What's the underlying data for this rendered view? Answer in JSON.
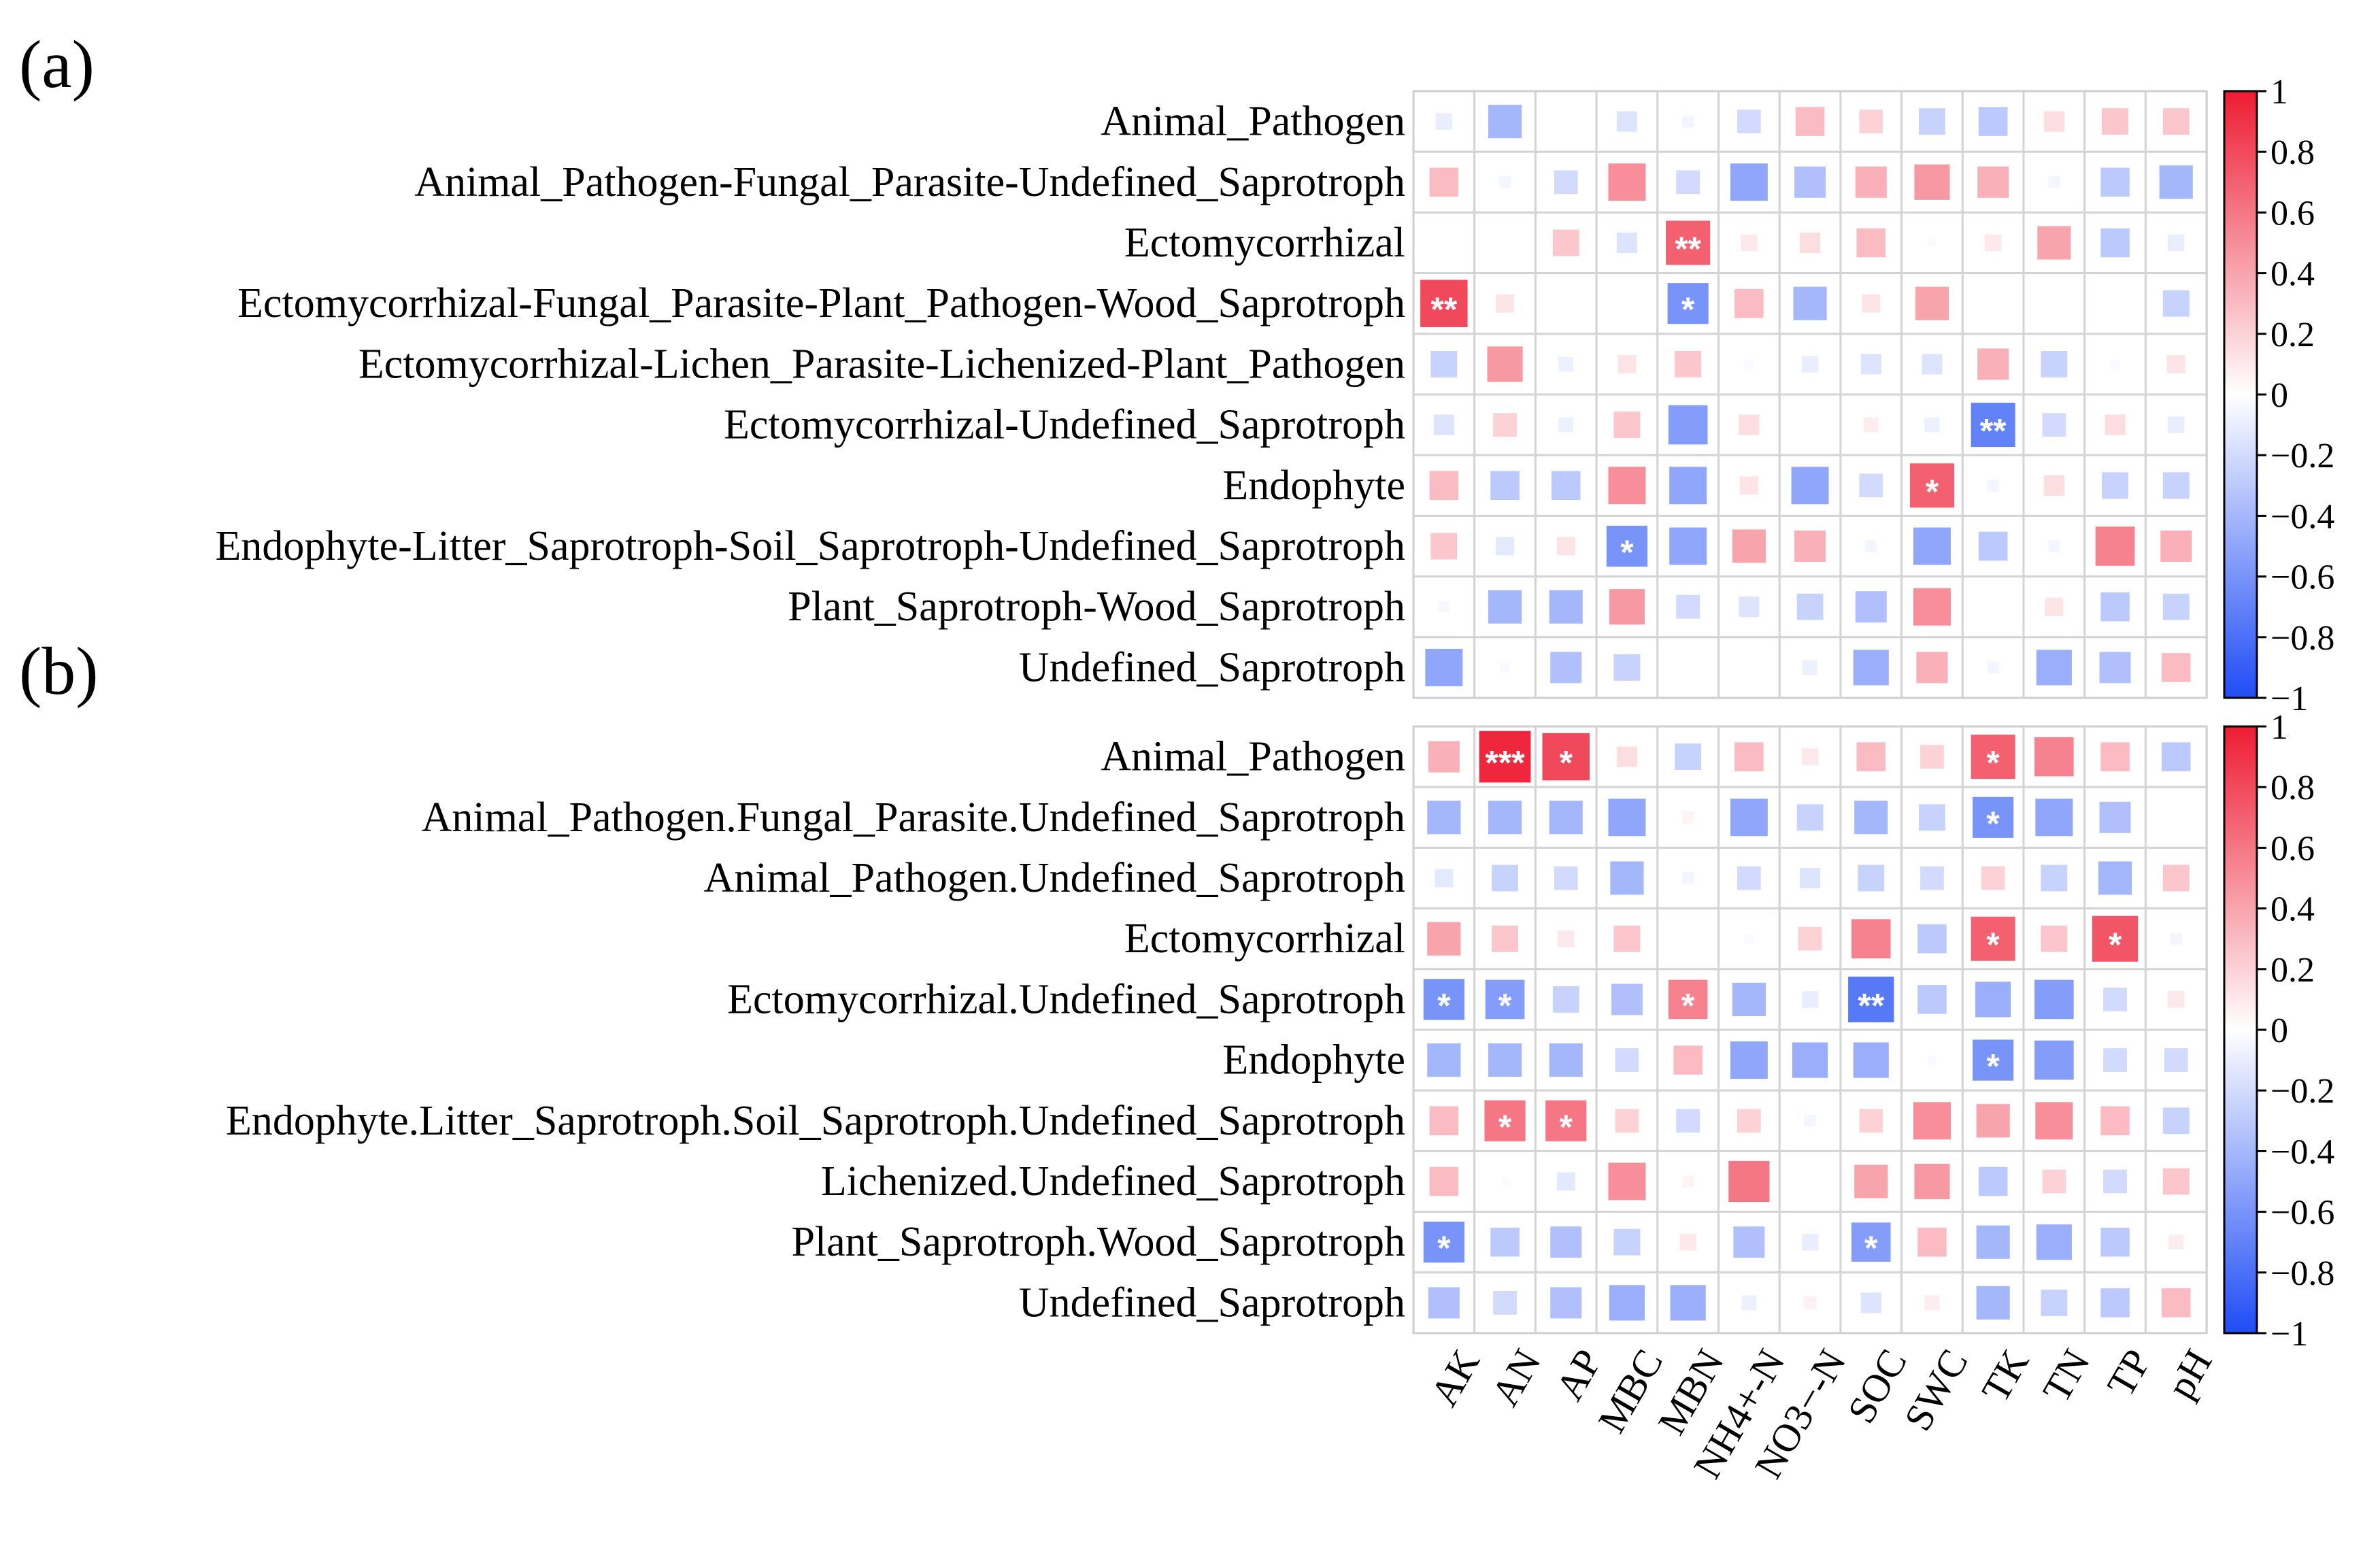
{
  "chart_data": [
    {
      "type": "heatmap",
      "panel_label": "(a)",
      "rows": [
        "Animal_Pathogen",
        "Animal_Pathogen-Fungal_Parasite-Undefined_Saprotroph",
        "Ectomycorrhizal",
        "Ectomycorrhizal-Fungal_Parasite-Plant_Pathogen-Wood_Saprotroph",
        "Ectomycorrhizal-Lichen_Parasite-Lichenized-Plant_Pathogen",
        "Ectomycorrhizal-Undefined_Saprotroph",
        "Endophyte",
        "Endophyte-Litter_Saprotroph-Soil_Saprotroph-Undefined_Saprotroph",
        "Plant_Saprotroph-Wood_Saprotroph",
        "Undefined_Saprotroph"
      ],
      "columns": [
        "AK",
        "AN",
        "AP",
        "MBC",
        "MBN",
        "NH4+-N",
        "NO3−-N",
        "SOC",
        "SWC",
        "TK",
        "TN",
        "TP",
        "pH"
      ],
      "values": [
        [
          -0.1,
          -0.4,
          0.0,
          -0.15,
          -0.05,
          -0.2,
          0.3,
          0.2,
          -0.25,
          -0.3,
          0.15,
          0.25,
          0.25
        ],
        [
          0.3,
          -0.05,
          -0.2,
          0.5,
          -0.2,
          -0.5,
          -0.35,
          0.35,
          0.45,
          0.35,
          -0.05,
          -0.3,
          -0.4
        ],
        [
          0.0,
          0.0,
          0.25,
          -0.15,
          0.7,
          0.1,
          0.15,
          0.3,
          -0.02,
          0.1,
          0.4,
          -0.3,
          -0.1
        ],
        [
          0.8,
          0.12,
          0.0,
          0.0,
          -0.6,
          0.3,
          -0.4,
          0.12,
          0.4,
          0.0,
          0.0,
          0.0,
          -0.25
        ],
        [
          -0.25,
          0.45,
          -0.08,
          0.12,
          0.25,
          -0.03,
          -0.1,
          -0.15,
          -0.15,
          0.35,
          -0.25,
          -0.03,
          0.12
        ],
        [
          -0.15,
          0.2,
          -0.08,
          0.25,
          -0.55,
          0.15,
          0.0,
          0.08,
          -0.08,
          -0.7,
          -0.2,
          0.15,
          -0.1
        ],
        [
          0.3,
          -0.3,
          -0.3,
          0.5,
          -0.5,
          0.12,
          -0.5,
          -0.2,
          0.7,
          -0.05,
          0.15,
          -0.25,
          -0.25
        ],
        [
          0.25,
          -0.12,
          0.12,
          -0.6,
          -0.5,
          0.4,
          0.35,
          -0.05,
          -0.5,
          -0.3,
          -0.05,
          0.55,
          0.35
        ],
        [
          -0.04,
          -0.4,
          -0.4,
          0.45,
          -0.2,
          -0.15,
          -0.25,
          -0.35,
          0.5,
          0.0,
          0.12,
          -0.3,
          -0.25
        ],
        [
          -0.5,
          -0.03,
          -0.35,
          -0.25,
          0.0,
          0.0,
          -0.08,
          -0.45,
          0.35,
          -0.05,
          -0.45,
          -0.35,
          0.3
        ]
      ],
      "significance": [
        [
          "",
          "",
          "",
          "",
          "",
          "",
          "",
          "",
          "",
          "",
          "",
          "",
          ""
        ],
        [
          "",
          "",
          "",
          "",
          "",
          "",
          "",
          "",
          "",
          "",
          "",
          "",
          ""
        ],
        [
          "",
          "",
          "",
          "",
          "**",
          "",
          "",
          "",
          "",
          "",
          "",
          "",
          ""
        ],
        [
          "**",
          "",
          "",
          "",
          "*",
          "",
          "",
          "",
          "",
          "",
          "",
          "",
          ""
        ],
        [
          "",
          "",
          "",
          "",
          "",
          "",
          "",
          "",
          "",
          "",
          "",
          "",
          ""
        ],
        [
          "",
          "",
          "",
          "",
          "",
          "",
          "",
          "",
          "",
          "**",
          "",
          "",
          ""
        ],
        [
          "",
          "",
          "",
          "",
          "",
          "",
          "",
          "",
          "*",
          "",
          "",
          "",
          ""
        ],
        [
          "",
          "",
          "",
          "*",
          "",
          "",
          "",
          "",
          "",
          "",
          "",
          "",
          ""
        ],
        [
          "",
          "",
          "",
          "",
          "",
          "",
          "",
          "",
          "",
          "",
          "",
          "",
          ""
        ],
        [
          "",
          "",
          "",
          "",
          "",
          "",
          "",
          "",
          "",
          "",
          "",
          "",
          ""
        ]
      ],
      "colorbar": {
        "min": -1,
        "max": 1,
        "ticks": [
          "1",
          "0.8",
          "0.6",
          "0.4",
          "0.2",
          "0",
          "−0.2",
          "−0.4",
          "−0.6",
          "−0.8",
          "−1"
        ],
        "low_color": "#1f4cf5",
        "mid_color": "#ffffff",
        "high_color": "#ee1c33"
      }
    },
    {
      "type": "heatmap",
      "panel_label": "(b)",
      "rows": [
        "Animal_Pathogen",
        "Animal_Pathogen.Fungal_Parasite.Undefined_Saprotroph",
        "Animal_Pathogen.Undefined_Saprotroph",
        "Ectomycorrhizal",
        "Ectomycorrhizal.Undefined_Saprotroph",
        "Endophyte",
        "Endophyte.Litter_Saprotroph.Soil_Saprotroph.Undefined_Saprotroph",
        "Lichenized.Undefined_Saprotroph",
        "Plant_Saprotroph.Wood_Saprotroph",
        "Undefined_Saprotroph"
      ],
      "columns": [
        "AK",
        "AN",
        "AP",
        "MBC",
        "MBN",
        "NH4+-N",
        "NO3−-N",
        "SOC",
        "SWC",
        "TK",
        "TN",
        "TP",
        "pH"
      ],
      "values": [
        [
          0.35,
          0.95,
          0.8,
          0.15,
          -0.25,
          0.3,
          0.1,
          0.3,
          0.2,
          0.7,
          0.55,
          0.3,
          -0.3
        ],
        [
          -0.4,
          -0.4,
          -0.4,
          -0.5,
          0.05,
          -0.5,
          -0.25,
          -0.4,
          -0.25,
          -0.6,
          -0.5,
          -0.35,
          0.0
        ],
        [
          -0.12,
          -0.25,
          -0.2,
          -0.4,
          -0.05,
          -0.2,
          -0.15,
          -0.25,
          -0.2,
          0.2,
          -0.25,
          -0.4,
          0.25
        ],
        [
          0.4,
          0.25,
          0.1,
          0.25,
          0.0,
          -0.03,
          0.2,
          0.55,
          -0.3,
          0.7,
          0.25,
          0.75,
          -0.05
        ],
        [
          -0.6,
          -0.55,
          -0.25,
          -0.35,
          0.55,
          -0.4,
          -0.1,
          -0.75,
          -0.3,
          -0.45,
          -0.55,
          -0.2,
          0.1
        ],
        [
          -0.4,
          -0.4,
          -0.4,
          -0.2,
          0.3,
          -0.5,
          -0.45,
          -0.45,
          -0.03,
          -0.6,
          -0.55,
          -0.2,
          -0.2
        ],
        [
          0.3,
          0.6,
          0.6,
          0.2,
          -0.2,
          0.2,
          -0.05,
          0.2,
          0.5,
          0.4,
          0.5,
          0.3,
          -0.25
        ],
        [
          0.3,
          -0.02,
          -0.12,
          0.5,
          0.05,
          0.6,
          0.0,
          0.4,
          0.45,
          -0.3,
          0.2,
          -0.2,
          0.25
        ],
        [
          -0.6,
          -0.3,
          -0.35,
          -0.25,
          0.1,
          -0.35,
          -0.1,
          -0.55,
          0.3,
          -0.4,
          -0.45,
          -0.3,
          0.08
        ],
        [
          -0.35,
          -0.2,
          -0.35,
          -0.45,
          -0.45,
          -0.08,
          0.06,
          -0.15,
          0.08,
          -0.4,
          -0.25,
          -0.3,
          0.3
        ]
      ],
      "significance": [
        [
          "",
          "***",
          "*",
          "",
          "",
          "",
          "",
          "",
          "",
          "*",
          "",
          "",
          ""
        ],
        [
          "",
          "",
          "",
          "",
          "",
          "",
          "",
          "",
          "",
          "*",
          "",
          "",
          ""
        ],
        [
          "",
          "",
          "",
          "",
          "",
          "",
          "",
          "",
          "",
          "",
          "",
          "",
          ""
        ],
        [
          "",
          "",
          "",
          "",
          "",
          "",
          "",
          "",
          "",
          "*",
          "",
          "*",
          ""
        ],
        [
          "*",
          "*",
          "",
          "",
          "*",
          "",
          "",
          "**",
          "",
          "",
          "",
          "",
          ""
        ],
        [
          "",
          "",
          "",
          "",
          "",
          "",
          "",
          "",
          "",
          "*",
          "",
          "",
          ""
        ],
        [
          "",
          "*",
          "*",
          "",
          "",
          "",
          "",
          "",
          "",
          "",
          "",
          "",
          ""
        ],
        [
          "",
          "",
          "",
          "",
          "",
          "",
          "",
          "",
          "",
          "",
          "",
          "",
          ""
        ],
        [
          "*",
          "",
          "",
          "",
          "",
          "",
          "",
          "*",
          "",
          "",
          "",
          "",
          ""
        ],
        [
          "",
          "",
          "",
          "",
          "",
          "",
          "",
          "",
          "",
          "",
          "",
          "",
          ""
        ]
      ],
      "colorbar": {
        "min": -1,
        "max": 1,
        "ticks": [
          "1",
          "0.8",
          "0.6",
          "0.4",
          "0.2",
          "0",
          "−0.2",
          "−0.4",
          "−0.6",
          "−0.8",
          "−1"
        ],
        "low_color": "#1f4cf5",
        "mid_color": "#ffffff",
        "high_color": "#ee1c33"
      }
    }
  ]
}
